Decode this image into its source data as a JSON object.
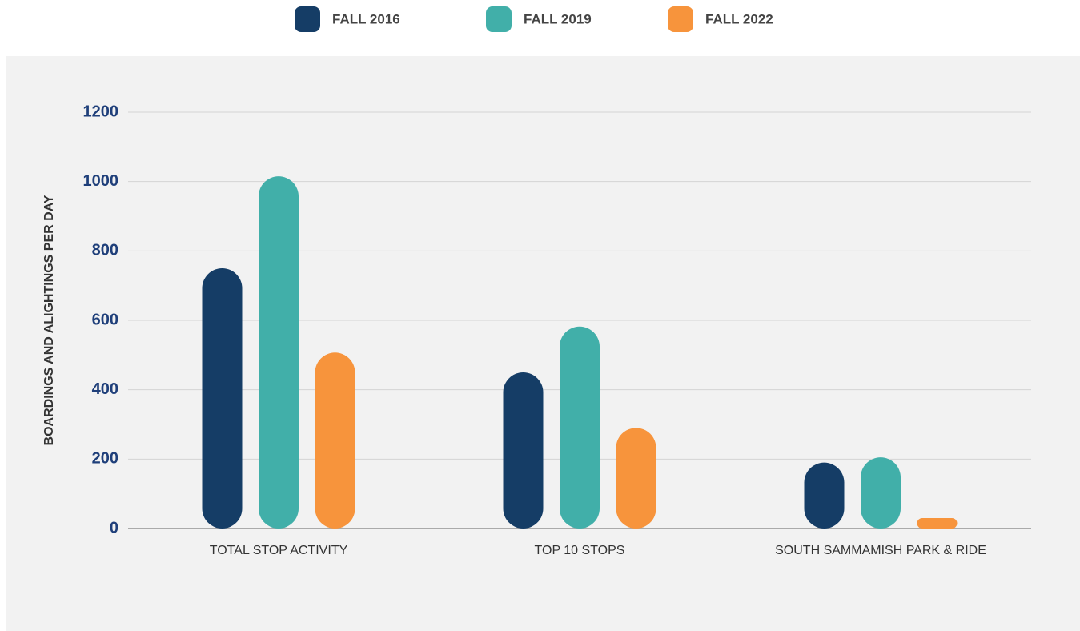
{
  "chart_data": {
    "type": "bar",
    "y_axis_label": "BOARDINGS AND ALIGHTINGS PER DAY",
    "categories": [
      "TOTAL STOP ACTIVITY",
      "TOP 10 STOPS",
      "SOUTH SAMMAMISH PARK & RIDE"
    ],
    "series": [
      {
        "name": "FALL 2016",
        "color": "#153d66",
        "values": [
          750,
          450,
          190
        ]
      },
      {
        "name": "FALL 2019",
        "color": "#41afa9",
        "values": [
          1015,
          582,
          205
        ]
      },
      {
        "name": "FALL 2022",
        "color": "#f7943c",
        "values": [
          507,
          290,
          30
        ]
      }
    ],
    "ylim": [
      0,
      1200
    ],
    "yticks": [
      0,
      200,
      400,
      600,
      800,
      1000,
      1200
    ],
    "grid": true,
    "legend": "top"
  }
}
